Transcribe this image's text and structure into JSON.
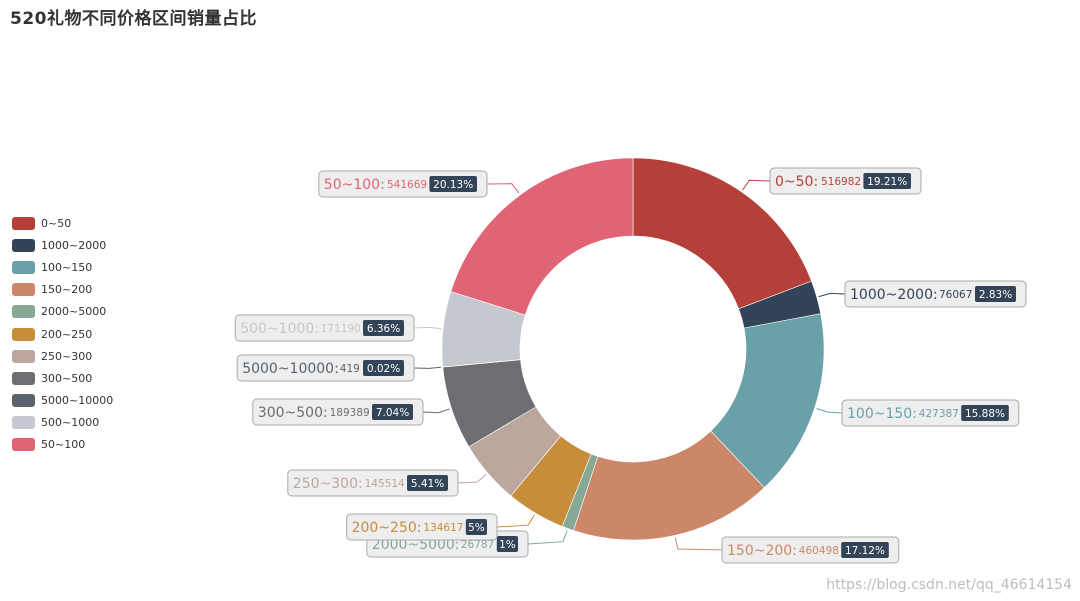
{
  "chart_data": {
    "type": "pie",
    "variant": "donut",
    "title": "520礼物不同价格区间销量占比",
    "slices": [
      {
        "name": "0~50",
        "value": 516982,
        "percent": "19.21%",
        "color": "#b5403a"
      },
      {
        "name": "1000~2000",
        "value": 76067,
        "percent": "2.83%",
        "color": "#334458"
      },
      {
        "name": "100~150",
        "value": 427387,
        "percent": "15.88%",
        "color": "#6aa0a8"
      },
      {
        "name": "150~200",
        "value": 460498,
        "percent": "17.12%",
        "color": "#cc8769"
      },
      {
        "name": "2000~5000",
        "value": 26787,
        "percent": "1%",
        "color": "#85a995"
      },
      {
        "name": "200~250",
        "value": 134617,
        "percent": "5%",
        "color": "#c68e3a"
      },
      {
        "name": "250~300",
        "value": 145514,
        "percent": "5.41%",
        "color": "#bba79e"
      },
      {
        "name": "300~500",
        "value": 189389,
        "percent": "7.04%",
        "color": "#6e6d72"
      },
      {
        "name": "5000~10000",
        "value": 419,
        "percent": "0.02%",
        "color": "#58636e"
      },
      {
        "name": "500~1000",
        "value": 171190,
        "percent": "6.36%",
        "color": "#c5c8cf"
      },
      {
        "name": "50~100",
        "value": 541669,
        "percent": "20.13%",
        "color": "#e06474"
      }
    ],
    "legend_position": "left"
  },
  "watermark": "https://blog.csdn.net/qq_46614154"
}
